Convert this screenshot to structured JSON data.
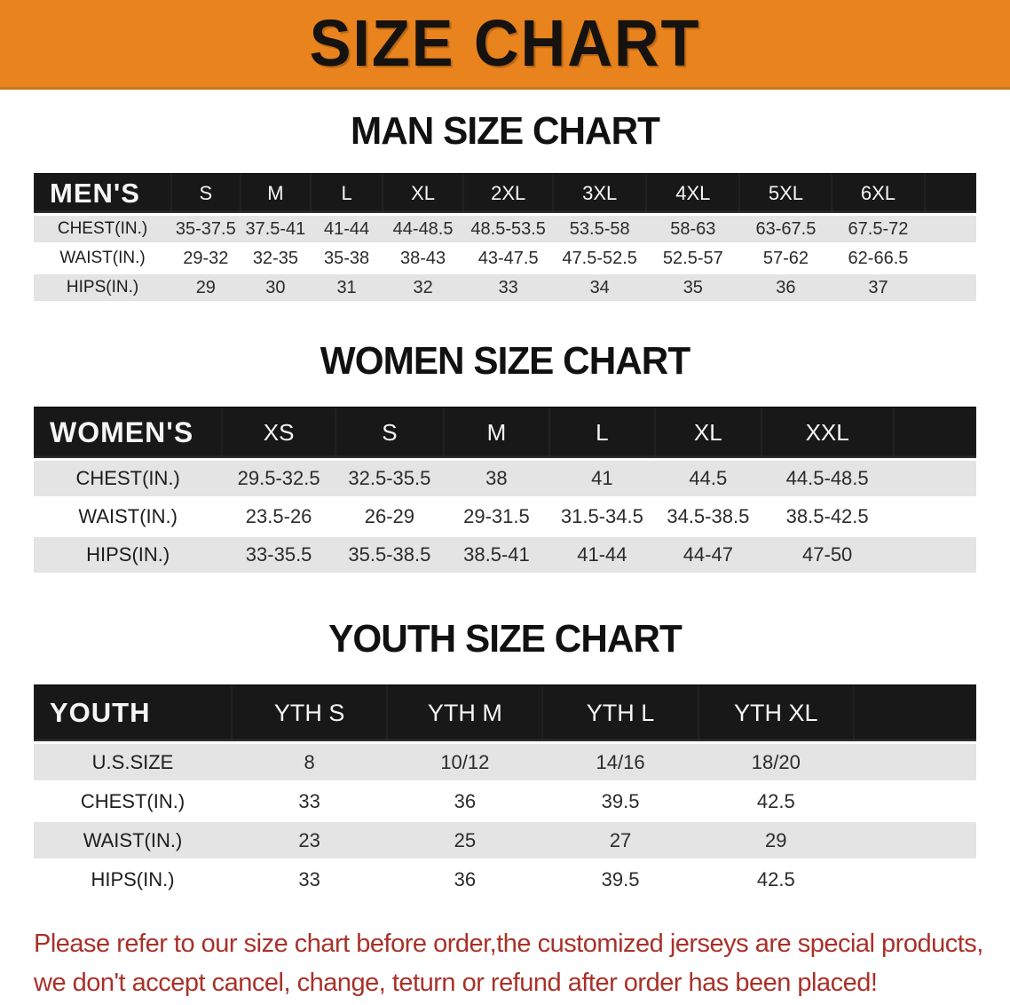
{
  "banner": {
    "title": "SIZE CHART",
    "bg_color": "#E8831E"
  },
  "sections": [
    {
      "key": "men",
      "heading": "MAN SIZE CHART",
      "table": {
        "header_label": "MEN'S",
        "columns": [
          "S",
          "M",
          "L",
          "XL",
          "2XL",
          "3XL",
          "4XL",
          "5XL",
          "6XL"
        ],
        "rows": [
          {
            "label": "CHEST(IN.)",
            "values": [
              "35-37.5",
              "37.5-41",
              "41-44",
              "44-48.5",
              "48.5-53.5",
              "53.5-58",
              "58-63",
              "63-67.5",
              "67.5-72"
            ]
          },
          {
            "label": "WAIST(IN.)",
            "values": [
              "29-32",
              "32-35",
              "35-38",
              "38-43",
              "43-47.5",
              "47.5-52.5",
              "52.5-57",
              "57-62",
              "62-66.5"
            ]
          },
          {
            "label": "HIPS(IN.)",
            "values": [
              "29",
              "30",
              "31",
              "32",
              "33",
              "34",
              "35",
              "36",
              "37"
            ]
          }
        ]
      }
    },
    {
      "key": "women",
      "heading": "WOMEN SIZE CHART",
      "table": {
        "header_label": "WOMEN'S",
        "columns": [
          "XS",
          "S",
          "M",
          "L",
          "XL",
          "XXL"
        ],
        "rows": [
          {
            "label": "CHEST(IN.)",
            "values": [
              "29.5-32.5",
              "32.5-35.5",
              "38",
              "41",
              "44.5",
              "44.5-48.5"
            ]
          },
          {
            "label": "WAIST(IN.)",
            "values": [
              "23.5-26",
              "26-29",
              "29-31.5",
              "31.5-34.5",
              "34.5-38.5",
              "38.5-42.5"
            ]
          },
          {
            "label": "HIPS(IN.)",
            "values": [
              "33-35.5",
              "35.5-38.5",
              "38.5-41",
              "41-44",
              "44-47",
              "47-50"
            ]
          }
        ]
      }
    },
    {
      "key": "youth",
      "heading": "YOUTH SIZE CHART",
      "table": {
        "header_label": "YOUTH",
        "columns": [
          "YTH S",
          "YTH M",
          "YTH L",
          "YTH XL"
        ],
        "rows": [
          {
            "label": "U.S.SIZE",
            "values": [
              "8",
              "10/12",
              "14/16",
              "18/20"
            ]
          },
          {
            "label": "CHEST(IN.)",
            "values": [
              "33",
              "36",
              "39.5",
              "42.5"
            ]
          },
          {
            "label": "WAIST(IN.)",
            "values": [
              "23",
              "25",
              "27",
              "29"
            ]
          },
          {
            "label": "HIPS(IN.)",
            "values": [
              "33",
              "36",
              "39.5",
              "42.5"
            ]
          }
        ]
      }
    }
  ],
  "footer_note": {
    "color": "#A93129",
    "lines": [
      "Please refer to our size chart before order,the customized jerseys are special products,",
      "we don't accept cancel, change, teturn or refund after order has been placed!"
    ]
  }
}
